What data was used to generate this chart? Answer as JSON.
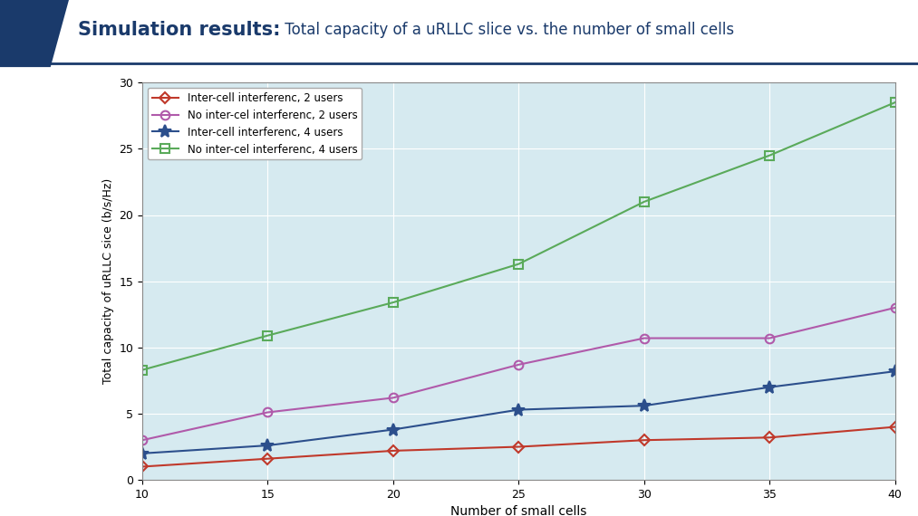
{
  "title_bold": "Simulation results:",
  "title_normal": " Total capacity of a uRLLC slice vs. the number of small cells",
  "xlabel": "Number of small cells",
  "ylabel": "Total capacity of uRLLC sice (b/s/Hz)",
  "x": [
    10,
    15,
    20,
    25,
    30,
    35,
    40
  ],
  "ylim": [
    0,
    30
  ],
  "xlim": [
    10,
    40
  ],
  "yticks": [
    0,
    5,
    10,
    15,
    20,
    25,
    30
  ],
  "xticks": [
    10,
    15,
    20,
    25,
    30,
    35,
    40
  ],
  "series": [
    {
      "label": "Inter-cell interferenc, 2 users",
      "color": "#c0392b",
      "marker": "D",
      "markersize": 6,
      "values": [
        1.0,
        1.6,
        2.2,
        2.5,
        3.0,
        3.2,
        4.0
      ]
    },
    {
      "label": "No inter-cel interferenc, 2 users",
      "color": "#b05aaa",
      "marker": "o",
      "markersize": 7,
      "values": [
        3.0,
        5.1,
        6.2,
        8.7,
        10.7,
        10.7,
        13.0
      ]
    },
    {
      "label": "Inter-cell interferenc, 4 users",
      "color": "#2c4f8c",
      "marker": "*",
      "markersize": 10,
      "values": [
        2.0,
        2.6,
        3.8,
        5.3,
        5.6,
        7.0,
        8.2
      ]
    },
    {
      "label": "No inter-cel interferenc, 4 users",
      "color": "#5aaa5a",
      "marker": "s",
      "markersize": 7,
      "values": [
        8.3,
        10.9,
        13.4,
        16.3,
        21.0,
        24.5,
        28.5
      ]
    }
  ],
  "plot_bg_color": "#d6eaf0",
  "header_bg_color": "#ffffff",
  "header_text_bold_color": "#1a3a6b",
  "header_text_normal_color": "#1a3a6b",
  "accent_color": "#1a3a6b",
  "underline_color": "#1a3a6b",
  "legend_loc": "upper left"
}
